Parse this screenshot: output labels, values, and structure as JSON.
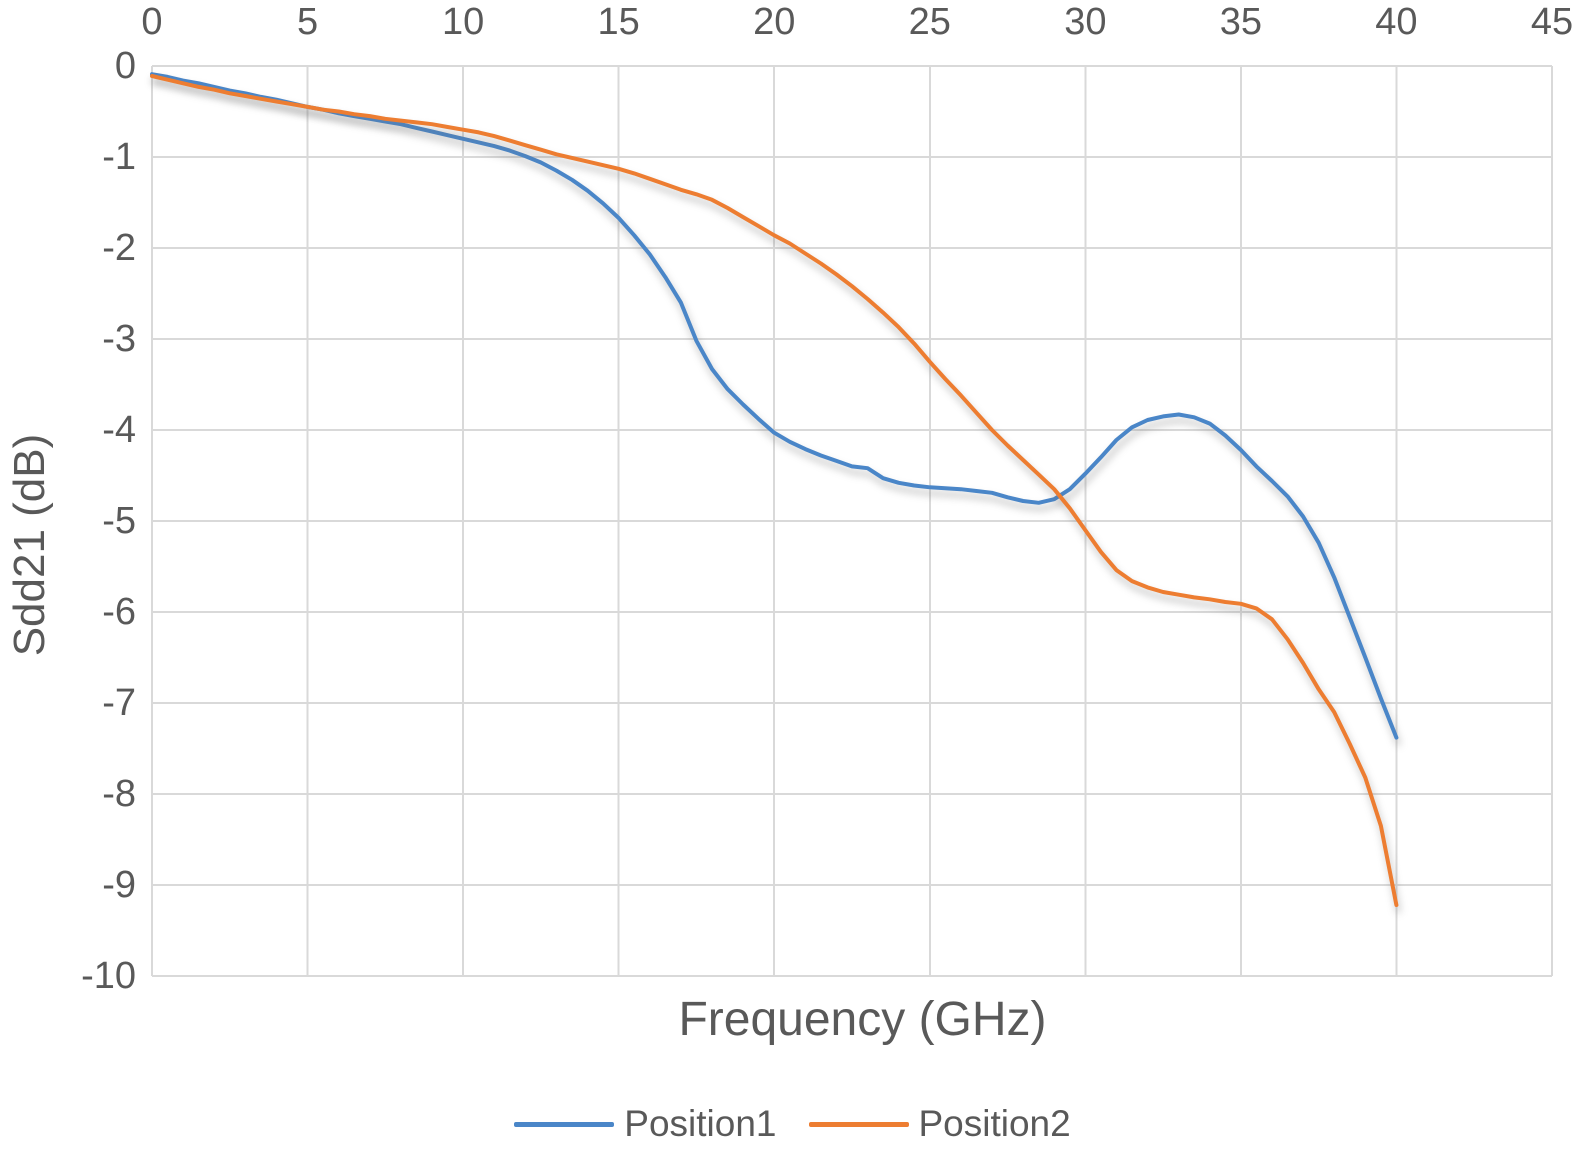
{
  "chart_data": {
    "type": "line",
    "title": "",
    "xlabel": "Frequency (GHz)",
    "ylabel": "Sdd21 (dB)",
    "xlim": [
      0,
      45
    ],
    "ylim": [
      -10,
      0
    ],
    "x_ticks": [
      0,
      5,
      10,
      15,
      20,
      25,
      30,
      35,
      40,
      45
    ],
    "y_ticks": [
      0,
      -1,
      -2,
      -3,
      -4,
      -5,
      -6,
      -7,
      -8,
      -9,
      -10
    ],
    "grid": true,
    "legend_position": "bottom",
    "x_start": 0,
    "x_step": 0.5,
    "series": [
      {
        "name": "Position1",
        "color": "#4A86C8",
        "values": [
          -0.09,
          -0.12,
          -0.16,
          -0.19,
          -0.23,
          -0.27,
          -0.3,
          -0.34,
          -0.37,
          -0.41,
          -0.45,
          -0.48,
          -0.52,
          -0.55,
          -0.58,
          -0.61,
          -0.64,
          -0.68,
          -0.72,
          -0.76,
          -0.8,
          -0.84,
          -0.88,
          -0.93,
          -0.99,
          -1.06,
          -1.15,
          -1.25,
          -1.37,
          -1.51,
          -1.67,
          -1.86,
          -2.07,
          -2.32,
          -2.6,
          -3.02,
          -3.33,
          -3.55,
          -3.72,
          -3.88,
          -4.03,
          -4.13,
          -4.21,
          -4.28,
          -4.34,
          -4.4,
          -4.42,
          -4.53,
          -4.58,
          -4.61,
          -4.63,
          -4.64,
          -4.65,
          -4.67,
          -4.69,
          -4.74,
          -4.78,
          -4.8,
          -4.76,
          -4.65,
          -4.48,
          -4.3,
          -4.11,
          -3.97,
          -3.89,
          -3.85,
          -3.83,
          -3.86,
          -3.93,
          -4.06,
          -4.22,
          -4.4,
          -4.56,
          -4.73,
          -4.95,
          -5.24,
          -5.62,
          -6.06,
          -6.5,
          -6.95,
          -7.38
        ]
      },
      {
        "name": "Position2",
        "color": "#ED7D31",
        "values": [
          -0.11,
          -0.15,
          -0.19,
          -0.23,
          -0.26,
          -0.3,
          -0.33,
          -0.36,
          -0.39,
          -0.42,
          -0.45,
          -0.48,
          -0.5,
          -0.53,
          -0.55,
          -0.58,
          -0.6,
          -0.62,
          -0.64,
          -0.67,
          -0.7,
          -0.73,
          -0.77,
          -0.82,
          -0.87,
          -0.92,
          -0.97,
          -1.01,
          -1.05,
          -1.09,
          -1.13,
          -1.18,
          -1.24,
          -1.3,
          -1.36,
          -1.41,
          -1.47,
          -1.56,
          -1.66,
          -1.76,
          -1.86,
          -1.95,
          -2.06,
          -2.17,
          -2.29,
          -2.42,
          -2.56,
          -2.71,
          -2.87,
          -3.05,
          -3.25,
          -3.44,
          -3.62,
          -3.81,
          -4.0,
          -4.17,
          -4.33,
          -4.49,
          -4.65,
          -4.86,
          -5.1,
          -5.34,
          -5.54,
          -5.66,
          -5.73,
          -5.78,
          -5.81,
          -5.84,
          -5.86,
          -5.89,
          -5.91,
          -5.96,
          -6.08,
          -6.3,
          -6.56,
          -6.85,
          -7.1,
          -7.45,
          -7.82,
          -8.35,
          -9.22
        ]
      }
    ]
  },
  "colors": {
    "text": "#595959",
    "grid": "#D9D9D9",
    "background": "#FFFFFF"
  }
}
